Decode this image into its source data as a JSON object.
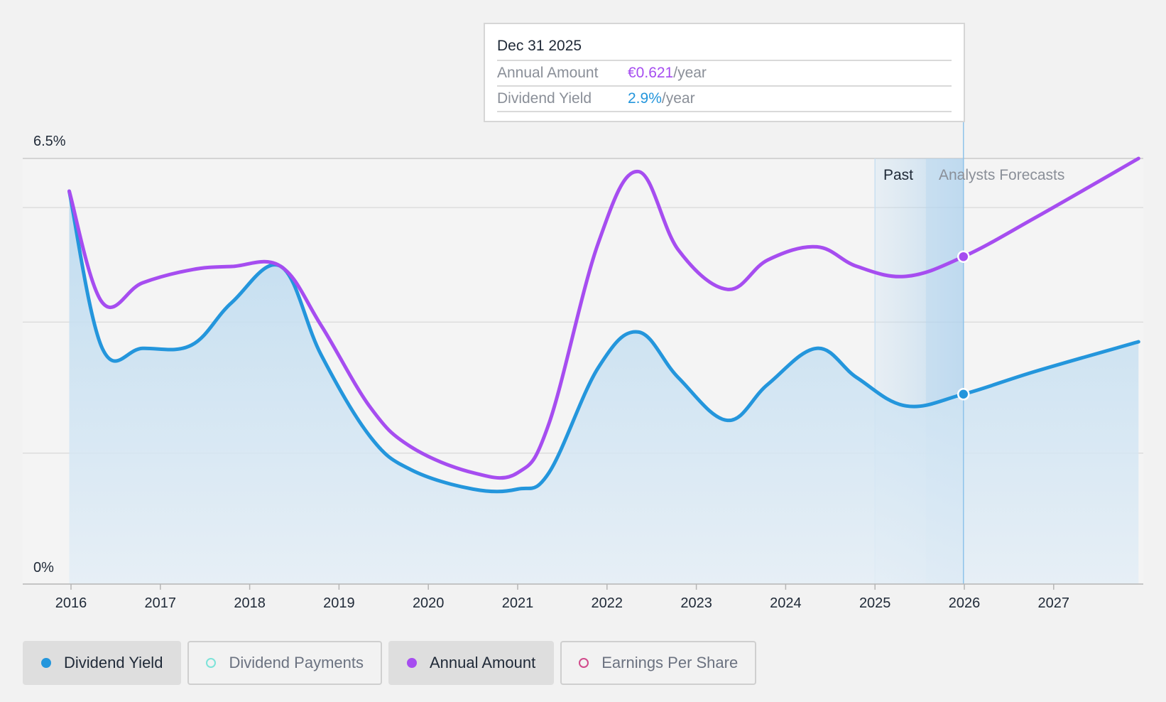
{
  "chart_data": {
    "type": "line",
    "x_ticks": [
      "2016",
      "2017",
      "2018",
      "2019",
      "2020",
      "2021",
      "2022",
      "2023",
      "2024",
      "2025",
      "2026",
      "2027"
    ],
    "y_ticks": [
      "6.5%",
      "0%"
    ],
    "ylim": [
      0,
      6.5
    ],
    "xlim": [
      2015.9,
      2027.95
    ],
    "grid": true,
    "past_label": "Past",
    "forecast_label": "Analysts Forecasts",
    "series": [
      {
        "name": "Dividend Yield",
        "color": "#2496dc",
        "area": true,
        "points": [
          [
            2015.98,
            6.0
          ],
          [
            2016.35,
            3.6
          ],
          [
            2016.8,
            3.6
          ],
          [
            2017.35,
            3.65
          ],
          [
            2017.8,
            4.3
          ],
          [
            2018.35,
            4.85
          ],
          [
            2018.8,
            3.5
          ],
          [
            2019.35,
            2.25
          ],
          [
            2019.8,
            1.75
          ],
          [
            2020.5,
            1.45
          ],
          [
            2021.0,
            1.45
          ],
          [
            2021.35,
            1.7
          ],
          [
            2021.9,
            3.3
          ],
          [
            2022.35,
            3.85
          ],
          [
            2022.8,
            3.15
          ],
          [
            2023.35,
            2.5
          ],
          [
            2023.8,
            3.05
          ],
          [
            2024.35,
            3.6
          ],
          [
            2024.8,
            3.15
          ],
          [
            2025.35,
            2.72
          ],
          [
            2025.99,
            2.9
          ],
          [
            2026.8,
            3.25
          ],
          [
            2027.95,
            3.7
          ]
        ]
      },
      {
        "name": "Annual Amount",
        "color": "#a64df0",
        "area": false,
        "points": [
          [
            2015.98,
            6.0
          ],
          [
            2016.35,
            4.3
          ],
          [
            2016.8,
            4.6
          ],
          [
            2017.35,
            4.8
          ],
          [
            2017.8,
            4.85
          ],
          [
            2018.35,
            4.85
          ],
          [
            2018.8,
            3.95
          ],
          [
            2019.35,
            2.7
          ],
          [
            2019.8,
            2.1
          ],
          [
            2020.5,
            1.7
          ],
          [
            2021.0,
            1.7
          ],
          [
            2021.35,
            2.45
          ],
          [
            2021.9,
            5.2
          ],
          [
            2022.35,
            6.3
          ],
          [
            2022.8,
            5.1
          ],
          [
            2023.35,
            4.5
          ],
          [
            2023.8,
            4.95
          ],
          [
            2024.35,
            5.15
          ],
          [
            2024.8,
            4.85
          ],
          [
            2025.35,
            4.7
          ],
          [
            2025.99,
            5.0
          ],
          [
            2026.8,
            5.6
          ],
          [
            2027.95,
            6.5
          ]
        ]
      }
    ],
    "highlight": {
      "x": 2025.99,
      "date": "Dec 31 2025"
    }
  },
  "tooltip": {
    "date": "Dec 31 2025",
    "rows": [
      {
        "label": "Annual Amount",
        "value": "€0.621",
        "unit": "/year"
      },
      {
        "label": "Dividend Yield",
        "value": "2.9%",
        "unit": "/year"
      }
    ]
  },
  "legend": [
    {
      "label": "Dividend Yield",
      "color": "#2496dc",
      "active": true,
      "filled": true
    },
    {
      "label": "Dividend Payments",
      "color": "#7de3d9",
      "active": false,
      "filled": false
    },
    {
      "label": "Annual Amount",
      "color": "#a64df0",
      "active": true,
      "filled": true
    },
    {
      "label": "Earnings Per Share",
      "color": "#d14a8b",
      "active": false,
      "filled": false
    }
  ]
}
